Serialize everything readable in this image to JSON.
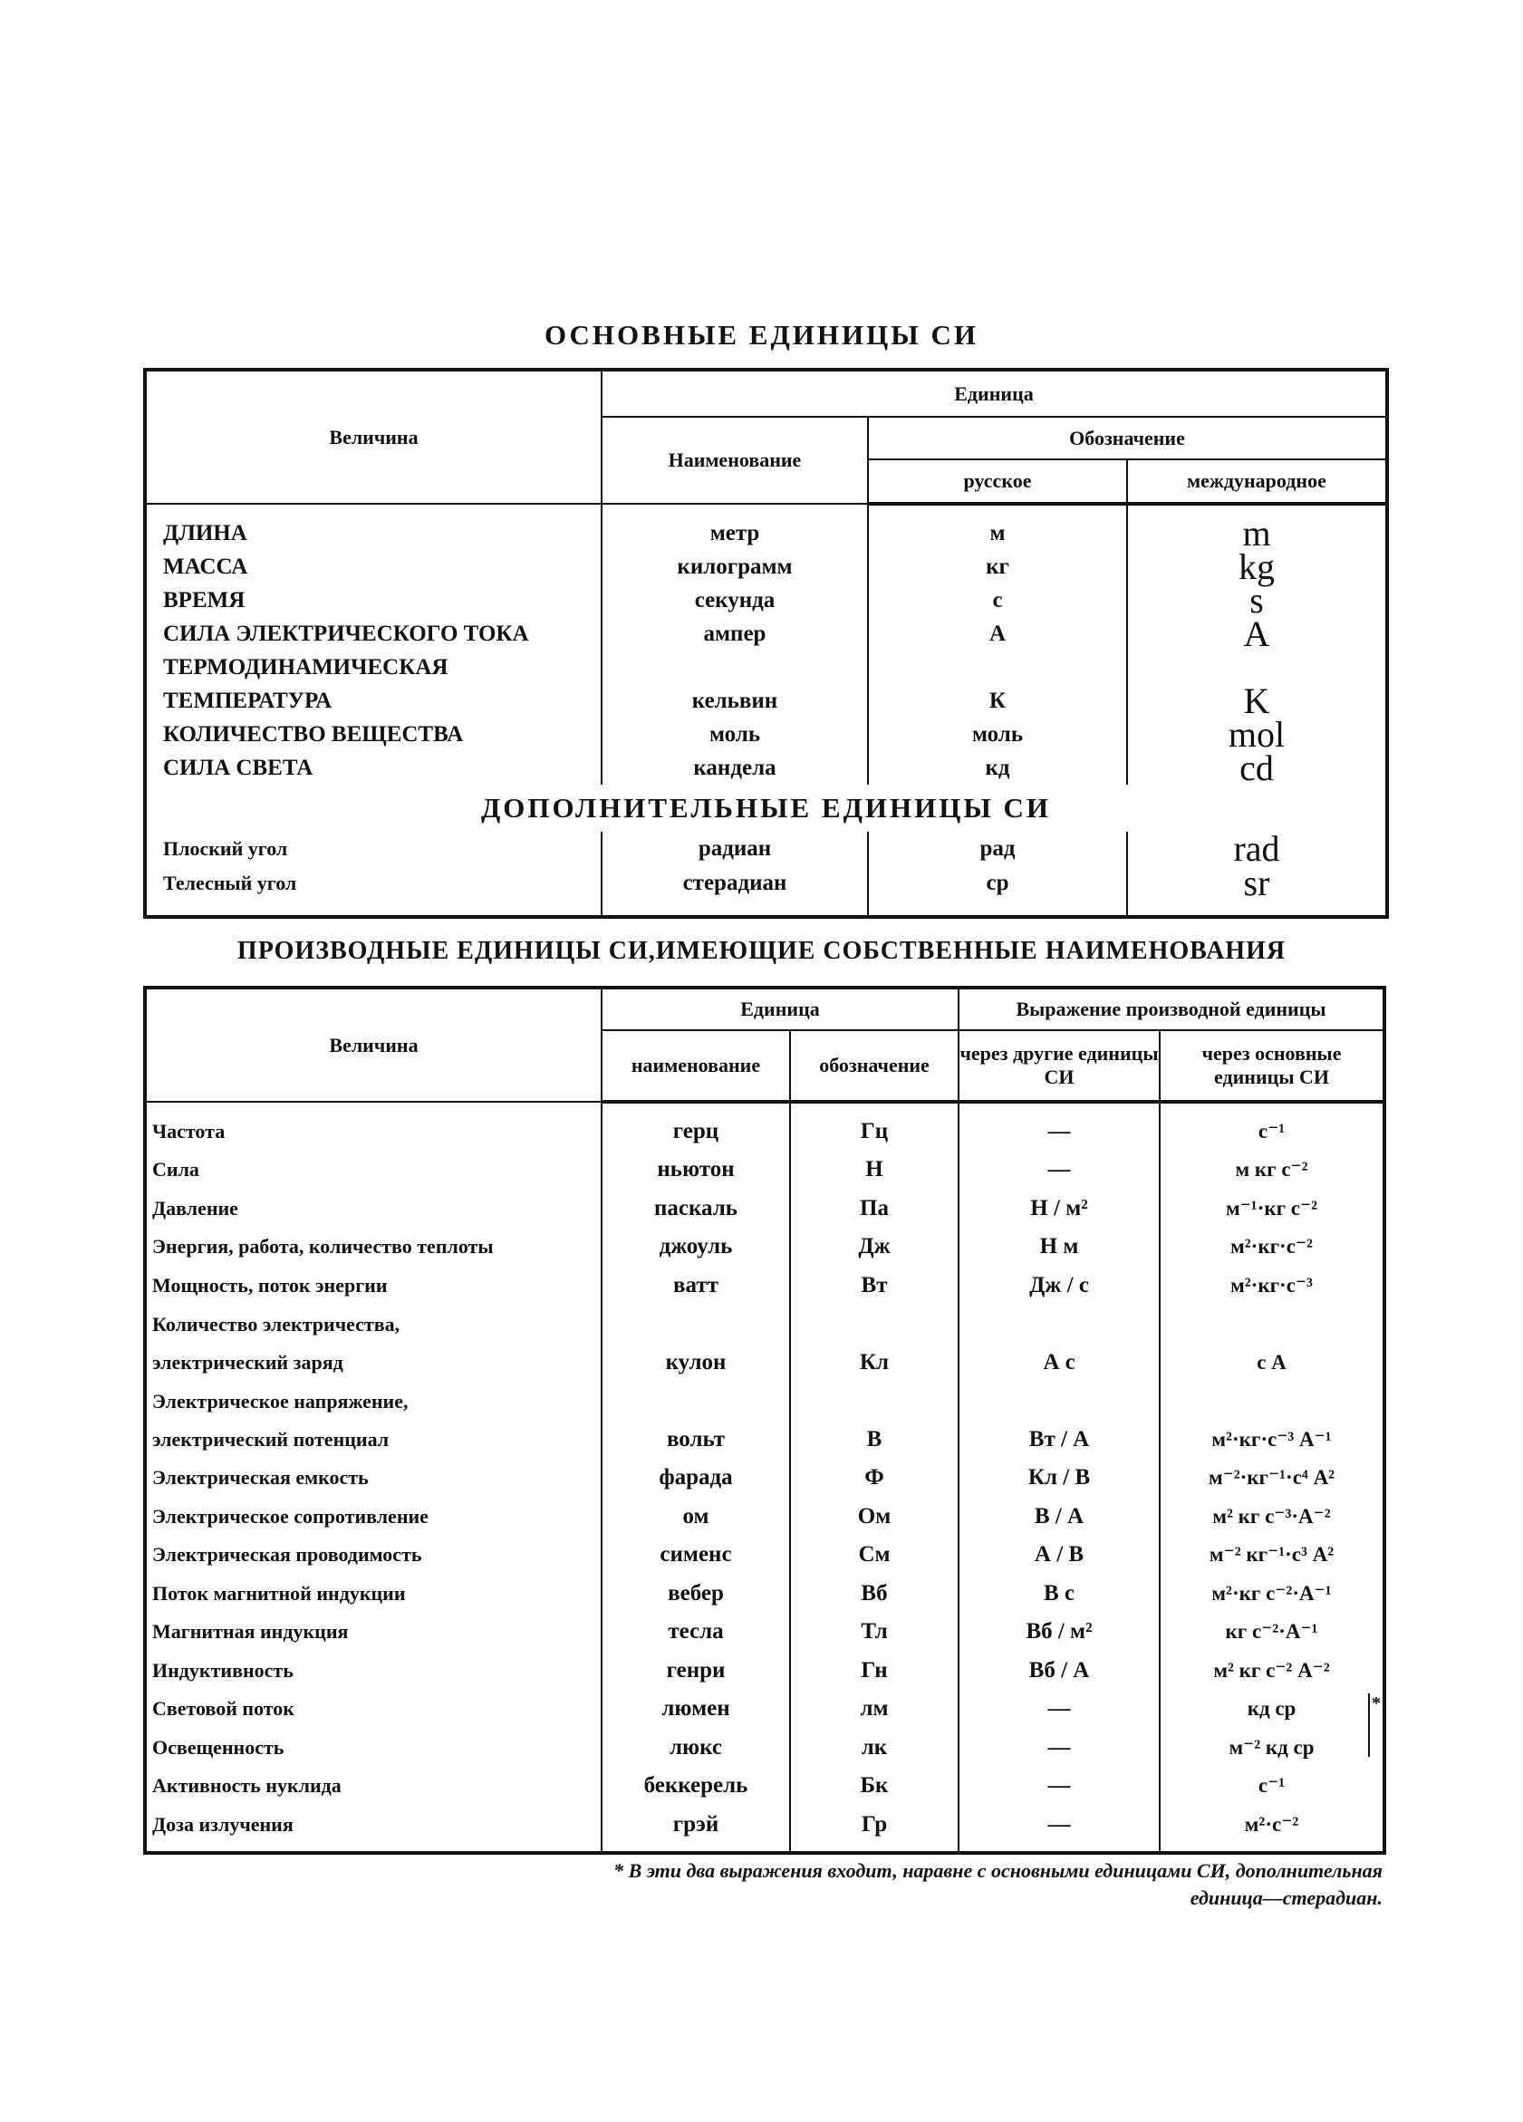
{
  "base": {
    "title": "ОСНОВНЫЕ ЕДИНИЦЫ СИ",
    "headers": {
      "quantity": "Величина",
      "unit": "Единица",
      "name": "Наименование",
      "designation": "Обозначение",
      "russian": "русское",
      "international": "международное"
    },
    "rows": [
      {
        "q": "ДЛИНА",
        "name": "метр",
        "ru": "м",
        "intl": "m"
      },
      {
        "q": "МАССА",
        "name": "килограмм",
        "ru": "кг",
        "intl": "kg"
      },
      {
        "q": "ВРЕМЯ",
        "name": "секунда",
        "ru": "с",
        "intl": "s"
      },
      {
        "q": "СИЛА ЭЛЕКТРИЧЕСКОГО ТОКА",
        "name": "ампер",
        "ru": "А",
        "intl": "A"
      },
      {
        "q": "ТЕРМОДИНАМИЧЕСКАЯ",
        "name": "",
        "ru": "",
        "intl": ""
      },
      {
        "q": "ТЕМПЕРАТУРА",
        "name": "кельвин",
        "ru": "К",
        "intl": "K"
      },
      {
        "q": "КОЛИЧЕСТВО ВЕЩЕСТВА",
        "name": "моль",
        "ru": "моль",
        "intl": "mol"
      },
      {
        "q": "СИЛА СВЕТА",
        "name": "кандела",
        "ru": "кд",
        "intl": "cd"
      }
    ],
    "supplementary_title": "ДОПОЛНИТЕЛЬНЫЕ ЕДИНИЦЫ СИ",
    "supplementary": [
      {
        "q": "Плоский угол",
        "name": "радиан",
        "ru": "рад",
        "intl": "rad"
      },
      {
        "q": "Телесный угол",
        "name": "стерадиан",
        "ru": "ср",
        "intl": "sr"
      }
    ]
  },
  "derived": {
    "title": "ПРОИЗВОДНЫЕ ЕДИНИЦЫ СИ,ИМЕЮЩИЕ СОБСТВЕННЫЕ НАИМЕНОВАНИЯ",
    "headers": {
      "quantity": "Величина",
      "unit": "Единица",
      "expression": "Выражение производной единицы",
      "name": "наименование",
      "designation": "обозначение",
      "via_other": "через другие единицы СИ",
      "via_base": "через основные единицы СИ"
    },
    "rows": [
      {
        "q": "Частота",
        "name": "герц",
        "sym": "Гц",
        "other": "—",
        "base": "с⁻¹"
      },
      {
        "q": "Сила",
        "name": "ньютон",
        "sym": "Н",
        "other": "—",
        "base": "м кг с⁻²"
      },
      {
        "q": "Давление",
        "name": "паскаль",
        "sym": "Па",
        "other": "Н / м²",
        "base": "м⁻¹·кг с⁻²"
      },
      {
        "q": "Энергия, работа, количество теплоты",
        "name": "джоуль",
        "sym": "Дж",
        "other": "Н м",
        "base": "м²·кг·с⁻²"
      },
      {
        "q": "Мощность, поток энергии",
        "name": "ватт",
        "sym": "Вт",
        "other": "Дж / с",
        "base": "м²·кг·с⁻³"
      },
      {
        "q": "Количество электричества,",
        "q2": "электрический заряд",
        "name": "кулон",
        "sym": "Кл",
        "other": "А с",
        "base": "с А"
      },
      {
        "q": "Электрическое напряжение,",
        "q2": "электрический потенциал",
        "name": "вольт",
        "sym": "В",
        "other": "Вт / А",
        "base": "м²·кг·с⁻³ А⁻¹"
      },
      {
        "q": "Электрическая емкость",
        "name": "фарада",
        "sym": "Ф",
        "other": "Кл / В",
        "base": "м⁻²·кг⁻¹·с⁴ А²"
      },
      {
        "q": "Электрическое сопротивление",
        "name": "ом",
        "sym": "Ом",
        "other": "В / А",
        "base": "м² кг с⁻³·А⁻²"
      },
      {
        "q": "Электрическая проводимость",
        "name": "сименс",
        "sym": "См",
        "other": "А / В",
        "base": "м⁻² кг⁻¹·с³ А²"
      },
      {
        "q": "Поток магнитной индукции",
        "name": "вебер",
        "sym": "Вб",
        "other": "В с",
        "base": "м²·кг с⁻²·А⁻¹"
      },
      {
        "q": "Магнитная индукция",
        "name": "тесла",
        "sym": "Тл",
        "other": "Вб / м²",
        "base": "кг с⁻²·А⁻¹"
      },
      {
        "q": "Индуктивность",
        "name": "генри",
        "sym": "Гн",
        "other": "Вб / А",
        "base": "м² кг с⁻² А⁻²"
      },
      {
        "q": "Световой поток",
        "name": "люмен",
        "sym": "лм",
        "other": "—",
        "base": "кд ср"
      },
      {
        "q": "Освещенность",
        "name": "люкс",
        "sym": "лк",
        "other": "—",
        "base": "м⁻² кд ср"
      },
      {
        "q": "Активность нуклида",
        "name": "беккерель",
        "sym": "Бк",
        "other": "—",
        "base": "с⁻¹"
      },
      {
        "q": "Доза излучения",
        "name": "грэй",
        "sym": "Гр",
        "other": "—",
        "base": "м²·с⁻²"
      }
    ],
    "star": "*",
    "footnote_line1": "* В эти два выражения входит, наравне с основными единицами СИ, дополнительная",
    "footnote_line2": "единица—стерадиан."
  }
}
